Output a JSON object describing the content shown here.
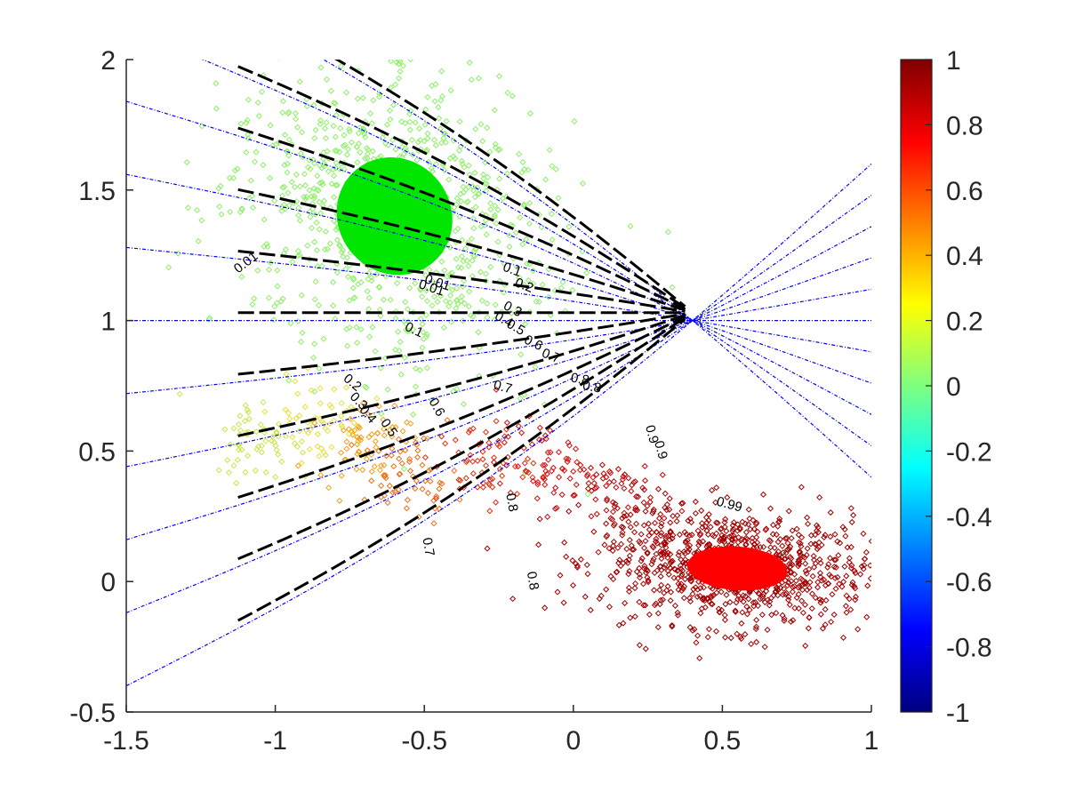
{
  "chart_data": {
    "type": "scatter",
    "title": "",
    "xlabel": "",
    "ylabel": "",
    "xlim": [
      -1.5,
      1
    ],
    "ylim": [
      -0.5,
      2
    ],
    "x_ticks": [
      "-1.5",
      "-1",
      "-0.5",
      "0",
      "0.5",
      "1"
    ],
    "y_ticks": [
      "-0.5",
      "0",
      "0.5",
      "1",
      "1.5",
      "2"
    ],
    "grid": false,
    "colormap": "jet",
    "colorbar": {
      "range": [
        -1,
        1
      ],
      "ticks": [
        "-1",
        "-0.8",
        "-0.6",
        "-0.4",
        "-0.2",
        "0",
        "0.2",
        "0.4",
        "0.6",
        "0.8",
        "1"
      ]
    },
    "clusters": [
      {
        "center": [
          -0.6,
          1.4
        ],
        "spread": [
          0.18,
          0.22
        ],
        "rotation_deg": 38,
        "core_color": "#00e600",
        "halo_color": "#8ff06a"
      },
      {
        "center": [
          0.55,
          0.05
        ],
        "spread": [
          0.16,
          0.08
        ],
        "rotation_deg": -4,
        "core_color": "#ff0000",
        "halo_color": "#a30000"
      }
    ],
    "transition_points": [
      {
        "x": -1.05,
        "y": 0.55,
        "color": "#c8e84a"
      },
      {
        "x": -0.85,
        "y": 0.62,
        "color": "#e8e040"
      },
      {
        "x": -0.7,
        "y": 0.55,
        "color": "#f5a020"
      },
      {
        "x": -0.55,
        "y": 0.4,
        "color": "#f07018"
      },
      {
        "x": -0.3,
        "y": 0.45,
        "color": "#e43010"
      },
      {
        "x": -0.1,
        "y": 0.45,
        "color": "#d81010"
      },
      {
        "x": 0.1,
        "y": 0.35,
        "color": "#c00808"
      },
      {
        "x": 0.25,
        "y": 0.2,
        "color": "#a80000"
      }
    ],
    "blue_contour_levels": [
      "0.01",
      "0.1",
      "0.2",
      "0.3",
      "0.4",
      "0.5",
      "0.6",
      "0.7",
      "0.8",
      "0.9",
      "0.99"
    ],
    "black_contour_levels": [
      "0.01",
      "0.1",
      "0.2",
      "0.3",
      "0.4",
      "0.5",
      "0.6",
      "0.7",
      "0.8",
      "0.9",
      "0.99"
    ],
    "contour_labels": [
      {
        "text": "0.01",
        "x": -1.09,
        "y": 1.21,
        "angle": 38
      },
      {
        "text": "0.01",
        "x": -0.46,
        "y": 1.13,
        "angle": -18
      },
      {
        "text": "0.01",
        "x": -0.48,
        "y": 1.11,
        "angle": -18
      },
      {
        "text": "0.1",
        "x": -0.21,
        "y": 1.18,
        "angle": -20
      },
      {
        "text": "0.2",
        "x": -0.17,
        "y": 1.12,
        "angle": -22
      },
      {
        "text": "0.1",
        "x": -0.54,
        "y": 0.95,
        "angle": -25
      },
      {
        "text": "0.3",
        "x": -0.21,
        "y": 1.03,
        "angle": -28
      },
      {
        "text": "0.4",
        "x": -0.24,
        "y": 0.99,
        "angle": -30
      },
      {
        "text": "0.5",
        "x": -0.2,
        "y": 0.96,
        "angle": -30
      },
      {
        "text": "0.6",
        "x": -0.14,
        "y": 0.9,
        "angle": -26
      },
      {
        "text": "0.7",
        "x": -0.08,
        "y": 0.85,
        "angle": -22
      },
      {
        "text": "0.2",
        "x": -0.75,
        "y": 0.75,
        "angle": -40
      },
      {
        "text": "0.3",
        "x": -0.73,
        "y": 0.68,
        "angle": -45
      },
      {
        "text": "0.4",
        "x": -0.7,
        "y": 0.63,
        "angle": -50
      },
      {
        "text": "0.5",
        "x": -0.63,
        "y": 0.58,
        "angle": -55
      },
      {
        "text": "0.6",
        "x": -0.47,
        "y": 0.66,
        "angle": -60
      },
      {
        "text": "0.7",
        "x": -0.24,
        "y": 0.73,
        "angle": -15
      },
      {
        "text": "0.8",
        "x": 0.02,
        "y": 0.76,
        "angle": -10
      },
      {
        "text": "0.8",
        "x": 0.06,
        "y": 0.73,
        "angle": -10
      },
      {
        "text": "0.9",
        "x": 0.25,
        "y": 0.56,
        "angle": -75
      },
      {
        "text": "0.9",
        "x": 0.28,
        "y": 0.5,
        "angle": -75
      },
      {
        "text": "0.99",
        "x": 0.52,
        "y": 0.28,
        "angle": -15
      },
      {
        "text": "0.8",
        "x": -0.22,
        "y": 0.3,
        "angle": -80
      },
      {
        "text": "0.7",
        "x": -0.5,
        "y": 0.13,
        "angle": -80
      },
      {
        "text": "0.8",
        "x": -0.15,
        "y": 0.0,
        "angle": -80
      }
    ]
  }
}
